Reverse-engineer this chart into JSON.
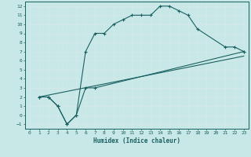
{
  "xlabel": "Humidex (Indice chaleur)",
  "ylabel": "",
  "bg_color": "#c8e8e8",
  "line_color": "#1a6060",
  "grid_color": "#d4e8e8",
  "xlim": [
    -0.5,
    23.5
  ],
  "ylim": [
    -1.5,
    12.5
  ],
  "xticks": [
    0,
    1,
    2,
    3,
    4,
    5,
    6,
    7,
    8,
    9,
    10,
    11,
    12,
    13,
    14,
    15,
    16,
    17,
    18,
    19,
    20,
    21,
    22,
    23
  ],
  "yticks": [
    -1,
    0,
    1,
    2,
    3,
    4,
    5,
    6,
    7,
    8,
    9,
    10,
    11,
    12
  ],
  "line1_x": [
    1,
    2,
    3,
    4,
    5,
    6,
    7,
    8,
    9,
    10,
    11,
    12,
    13,
    14,
    15,
    16,
    17,
    18,
    21,
    22,
    23
  ],
  "line1_y": [
    2,
    2,
    1,
    -1,
    0,
    7,
    9,
    9,
    10,
    10.5,
    11,
    11,
    11,
    12,
    12,
    11.5,
    11,
    9.5,
    7.5,
    7.5,
    7
  ],
  "line2_x": [
    1,
    2,
    3,
    4,
    5,
    6,
    7,
    23
  ],
  "line2_y": [
    2,
    2,
    1,
    -1,
    0,
    3,
    3,
    7
  ],
  "line3_x": [
    1,
    23
  ],
  "line3_y": [
    2,
    6.5
  ]
}
